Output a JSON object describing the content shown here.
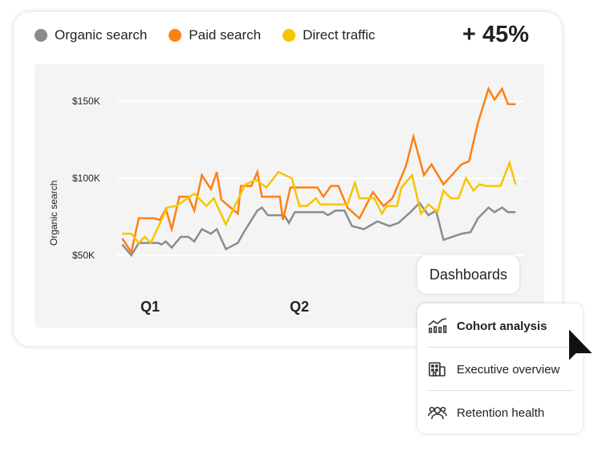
{
  "legend": [
    {
      "label": "Organic search",
      "color": "#8c8c8c"
    },
    {
      "label": "Paid search",
      "color": "#ff8012"
    },
    {
      "label": "Direct traffic",
      "color": "#f5c600"
    }
  ],
  "kpi": "+ 45%",
  "dashboards_button": "Dashboards",
  "menu": {
    "items": [
      {
        "label": "Cohort analysis",
        "icon": "chart-growth-icon",
        "selected": true
      },
      {
        "label": "Executive overview",
        "icon": "building-icon",
        "selected": false
      },
      {
        "label": "Retention health",
        "icon": "users-icon",
        "selected": false
      }
    ]
  },
  "chart_data": {
    "type": "line",
    "ylabel": "Organic search",
    "yticks": [
      "$50K",
      "$100K",
      "$150K"
    ],
    "ytick_values": [
      50,
      100,
      150
    ],
    "xticks": [
      "Q1",
      "Q2"
    ],
    "xtick_values": [
      1,
      2
    ],
    "grid": true,
    "legend": "top-left",
    "series": [
      {
        "name": "Organic search",
        "color": "#8c8c8c",
        "points": [
          [
            0.82,
            57
          ],
          [
            0.88,
            50
          ],
          [
            0.93,
            58
          ],
          [
            1.06,
            58
          ],
          [
            1.08,
            57
          ],
          [
            1.11,
            59
          ],
          [
            1.15,
            55
          ],
          [
            1.21,
            62
          ],
          [
            1.26,
            62
          ],
          [
            1.3,
            59
          ],
          [
            1.35,
            67
          ],
          [
            1.41,
            64
          ],
          [
            1.45,
            67
          ],
          [
            1.51,
            54
          ],
          [
            1.59,
            58
          ],
          [
            1.63,
            65
          ],
          [
            1.72,
            79
          ],
          [
            1.75,
            81
          ],
          [
            1.79,
            76
          ],
          [
            1.9,
            76
          ],
          [
            1.93,
            71
          ],
          [
            1.97,
            78
          ],
          [
            2.04,
            78
          ],
          [
            2.16,
            78
          ],
          [
            2.19,
            76
          ],
          [
            2.24,
            79
          ],
          [
            2.3,
            79
          ],
          [
            2.35,
            69
          ],
          [
            2.43,
            67
          ],
          [
            2.52,
            72
          ],
          [
            2.6,
            69
          ],
          [
            2.66,
            71
          ],
          [
            2.74,
            78
          ],
          [
            2.8,
            84
          ],
          [
            2.86,
            76
          ],
          [
            2.91,
            79
          ],
          [
            2.96,
            60
          ],
          [
            3.08,
            64
          ],
          [
            3.14,
            65
          ],
          [
            3.19,
            74
          ],
          [
            3.26,
            81
          ],
          [
            3.3,
            78
          ],
          [
            3.35,
            81
          ],
          [
            3.39,
            78
          ],
          [
            3.44,
            78
          ]
        ]
      },
      {
        "name": "Paid search",
        "color": "#ff8012",
        "points": [
          [
            0.82,
            61
          ],
          [
            0.88,
            52
          ],
          [
            0.93,
            74
          ],
          [
            1.03,
            74
          ],
          [
            1.07,
            73
          ],
          [
            1.11,
            80
          ],
          [
            1.15,
            67
          ],
          [
            1.2,
            88
          ],
          [
            1.26,
            88
          ],
          [
            1.3,
            79
          ],
          [
            1.35,
            102
          ],
          [
            1.41,
            93
          ],
          [
            1.45,
            104
          ],
          [
            1.48,
            86
          ],
          [
            1.59,
            77
          ],
          [
            1.61,
            95
          ],
          [
            1.68,
            95
          ],
          [
            1.72,
            104
          ],
          [
            1.75,
            88
          ],
          [
            1.87,
            88
          ],
          [
            1.89,
            73
          ],
          [
            1.94,
            94
          ],
          [
            2.04,
            94
          ],
          [
            2.12,
            94
          ],
          [
            2.16,
            88
          ],
          [
            2.21,
            95
          ],
          [
            2.26,
            95
          ],
          [
            2.32,
            81
          ],
          [
            2.4,
            74
          ],
          [
            2.49,
            91
          ],
          [
            2.56,
            82
          ],
          [
            2.62,
            87
          ],
          [
            2.71,
            108
          ],
          [
            2.76,
            127
          ],
          [
            2.83,
            102
          ],
          [
            2.88,
            109
          ],
          [
            2.96,
            96
          ],
          [
            3.08,
            109
          ],
          [
            3.13,
            111
          ],
          [
            3.19,
            136
          ],
          [
            3.26,
            158
          ],
          [
            3.3,
            151
          ],
          [
            3.35,
            158
          ],
          [
            3.39,
            148
          ],
          [
            3.44,
            148
          ]
        ]
      },
      {
        "name": "Direct traffic",
        "color": "#f5c600",
        "points": [
          [
            0.82,
            64
          ],
          [
            0.88,
            64
          ],
          [
            0.93,
            58
          ],
          [
            0.97,
            62
          ],
          [
            1.01,
            58
          ],
          [
            1.12,
            81
          ],
          [
            1.18,
            82
          ],
          [
            1.3,
            90
          ],
          [
            1.38,
            82
          ],
          [
            1.43,
            87
          ],
          [
            1.51,
            70
          ],
          [
            1.64,
            96
          ],
          [
            1.71,
            99
          ],
          [
            1.78,
            94
          ],
          [
            1.86,
            104
          ],
          [
            1.95,
            100
          ],
          [
            2.0,
            82
          ],
          [
            2.05,
            82
          ],
          [
            2.11,
            87
          ],
          [
            2.14,
            83
          ],
          [
            2.32,
            83
          ],
          [
            2.37,
            97
          ],
          [
            2.4,
            87
          ],
          [
            2.5,
            87
          ],
          [
            2.55,
            77
          ],
          [
            2.58,
            82
          ],
          [
            2.65,
            82
          ],
          [
            2.68,
            94
          ],
          [
            2.75,
            102
          ],
          [
            2.81,
            77
          ],
          [
            2.86,
            83
          ],
          [
            2.92,
            78
          ],
          [
            2.96,
            92
          ],
          [
            3.01,
            87
          ],
          [
            3.06,
            87
          ],
          [
            3.11,
            100
          ],
          [
            3.16,
            92
          ],
          [
            3.2,
            96
          ],
          [
            3.24,
            95
          ],
          [
            3.34,
            95
          ],
          [
            3.4,
            110
          ],
          [
            3.44,
            96
          ]
        ]
      }
    ]
  }
}
